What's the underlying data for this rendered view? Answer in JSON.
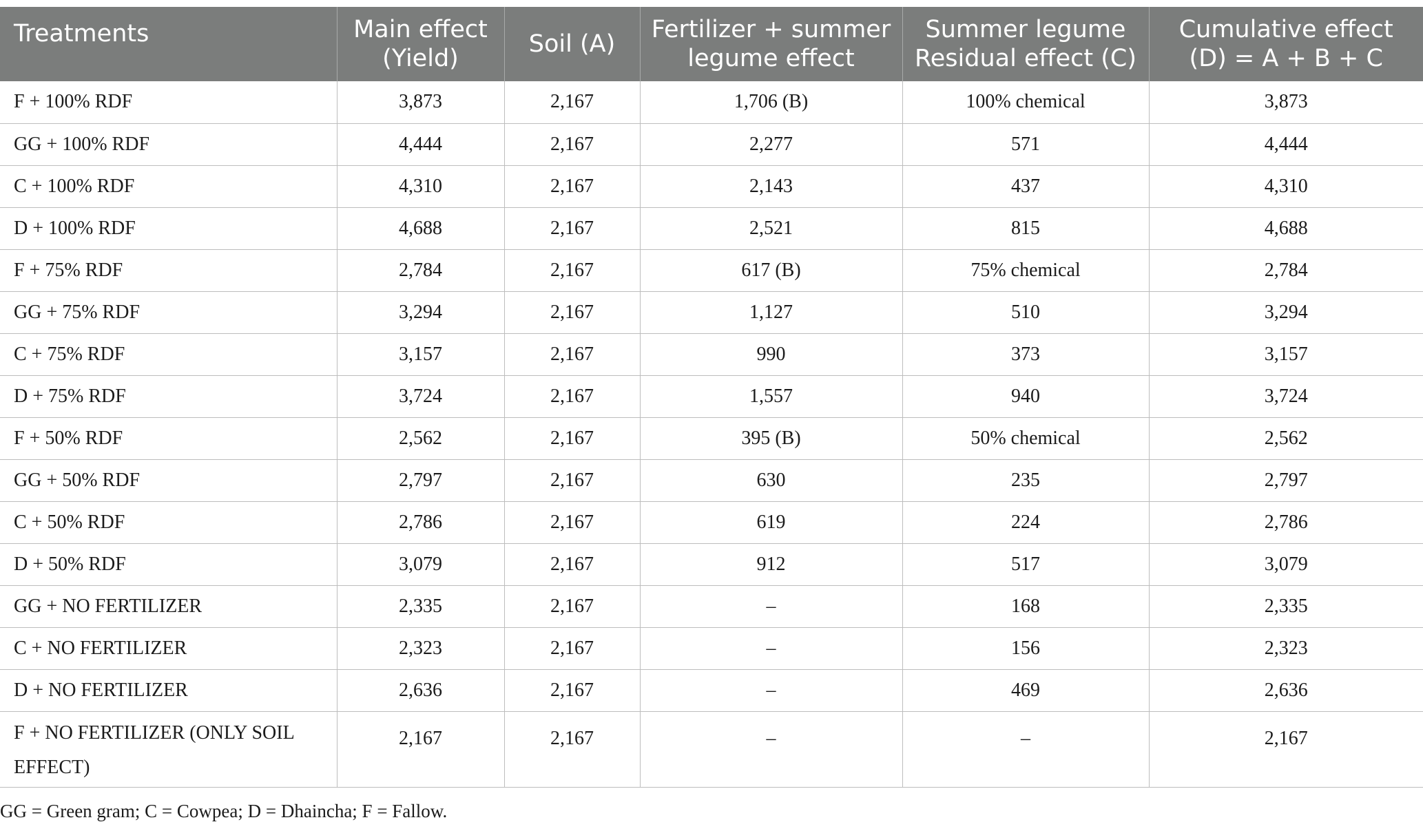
{
  "table": {
    "headers": [
      [
        "Treatments"
      ],
      [
        "Main effect",
        "(Yield)"
      ],
      [
        "Soil (A)"
      ],
      [
        "Fertilizer + summer",
        "legume effect"
      ],
      [
        "Summer legume",
        "Residual effect (C)"
      ],
      [
        "Cumulative effect",
        "(D) = A + B + C"
      ]
    ],
    "rows": [
      [
        "F + 100% RDF",
        "3,873",
        "2,167",
        "1,706 (B)",
        "100% chemical",
        "3,873"
      ],
      [
        "GG + 100% RDF",
        "4,444",
        "2,167",
        "2,277",
        "571",
        "4,444"
      ],
      [
        "C + 100% RDF",
        "4,310",
        "2,167",
        "2,143",
        "437",
        "4,310"
      ],
      [
        "D + 100% RDF",
        "4,688",
        "2,167",
        "2,521",
        "815",
        "4,688"
      ],
      [
        "F + 75% RDF",
        "2,784",
        "2,167",
        "617 (B)",
        "75% chemical",
        "2,784"
      ],
      [
        "GG + 75% RDF",
        "3,294",
        "2,167",
        "1,127",
        "510",
        "3,294"
      ],
      [
        "C + 75% RDF",
        "3,157",
        "2,167",
        "990",
        "373",
        "3,157"
      ],
      [
        "D + 75% RDF",
        "3,724",
        "2,167",
        "1,557",
        "940",
        "3,724"
      ],
      [
        "F + 50% RDF",
        "2,562",
        "2,167",
        "395 (B)",
        "50% chemical",
        "2,562"
      ],
      [
        "GG + 50% RDF",
        "2,797",
        "2,167",
        "630",
        "235",
        "2,797"
      ],
      [
        "C + 50% RDF",
        "2,786",
        "2,167",
        "619",
        "224",
        "2,786"
      ],
      [
        "D + 50% RDF",
        "3,079",
        "2,167",
        "912",
        "517",
        "3,079"
      ],
      [
        "GG + NO FERTILIZER",
        "2,335",
        "2,167",
        "–",
        "168",
        "2,335"
      ],
      [
        "C + NO FERTILIZER",
        "2,323",
        "2,167",
        "–",
        "156",
        "2,323"
      ],
      [
        "D + NO FERTILIZER",
        "2,636",
        "2,167",
        "–",
        "469",
        "2,636"
      ]
    ],
    "last_row": {
      "treatment_line1": "F + NO FERTILIZER (ONLY SOIL",
      "treatment_line2": "EFFECT)",
      "values": [
        "2,167",
        "2,167",
        "–",
        "–",
        "2,167"
      ]
    }
  },
  "footnote": "GG = Green gram; C = Cowpea; D = Dhaincha; F = Fallow.",
  "colors": {
    "header_bg": "#7b7d7c",
    "header_text": "#ffffff",
    "grid_line": "#bdbdbd"
  }
}
